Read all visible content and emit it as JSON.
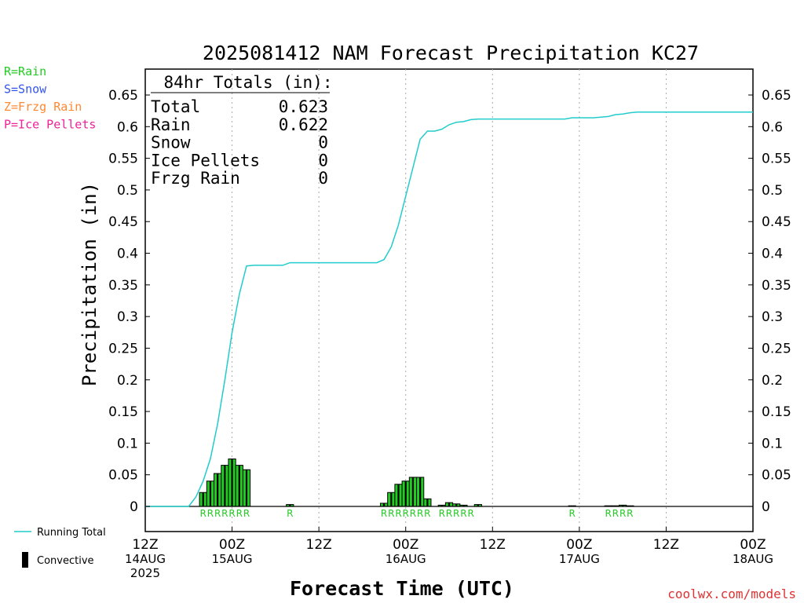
{
  "chart_data": {
    "type": "bar",
    "title": "2025081412 NAM Forecast Precipitation KC27",
    "xlabel": "Forecast Time (UTC)",
    "ylabel": "Precipitation (in)",
    "ylim": [
      0,
      0.68
    ],
    "y_ticks": [
      "0",
      "0.05",
      "0.1",
      "0.15",
      "0.2",
      "0.25",
      "0.3",
      "0.35",
      "0.4",
      "0.45",
      "0.5",
      "0.55",
      "0.6",
      "0.65"
    ],
    "y_tick_values": [
      0,
      0.05,
      0.1,
      0.15,
      0.2,
      0.25,
      0.3,
      0.35,
      0.4,
      0.45,
      0.5,
      0.55,
      0.6,
      0.65
    ],
    "x_range_hours": [
      0,
      84
    ],
    "x_ticks": [
      {
        "hour": 0,
        "lines": [
          "12Z",
          "14AUG",
          "2025"
        ]
      },
      {
        "hour": 12,
        "lines": [
          "00Z",
          "15AUG"
        ]
      },
      {
        "hour": 24,
        "lines": [
          "12Z"
        ]
      },
      {
        "hour": 36,
        "lines": [
          "00Z",
          "16AUG"
        ]
      },
      {
        "hour": 48,
        "lines": [
          "12Z"
        ]
      },
      {
        "hour": 60,
        "lines": [
          "00Z",
          "17AUG"
        ]
      },
      {
        "hour": 72,
        "lines": [
          "12Z"
        ]
      },
      {
        "hour": 84,
        "lines": [
          "00Z",
          "18AUG"
        ]
      }
    ],
    "grid": "vertical-dotted",
    "bar_series": {
      "name": "Convective",
      "hours": [
        8,
        9,
        10,
        11,
        12,
        13,
        14,
        20,
        33,
        34,
        35,
        36,
        37,
        38,
        39,
        41,
        42,
        43,
        44,
        46,
        59,
        64,
        65,
        66,
        67
      ],
      "values": [
        0.022,
        0.04,
        0.052,
        0.065,
        0.075,
        0.065,
        0.058,
        0.003,
        0.005,
        0.022,
        0.035,
        0.04,
        0.046,
        0.046,
        0.012,
        0.002,
        0.006,
        0.004,
        0.002,
        0.003,
        0.001,
        0.001,
        0.001,
        0.002,
        0.001
      ]
    },
    "line_series": {
      "name": "Running Total",
      "hours": [
        0,
        6,
        7,
        8,
        9,
        10,
        11,
        12,
        13,
        14,
        15,
        16,
        17,
        18,
        19,
        20,
        21,
        22,
        24,
        30,
        32,
        33,
        34,
        35,
        36,
        37,
        38,
        39,
        40,
        41,
        42,
        43,
        44,
        45,
        46,
        48,
        50,
        55,
        58,
        59,
        62,
        64,
        65,
        66,
        67,
        68,
        70,
        84
      ],
      "values": [
        0,
        0,
        0.015,
        0.04,
        0.075,
        0.13,
        0.2,
        0.275,
        0.335,
        0.38,
        0.381,
        0.381,
        0.381,
        0.381,
        0.381,
        0.385,
        0.385,
        0.385,
        0.385,
        0.385,
        0.385,
        0.39,
        0.41,
        0.445,
        0.49,
        0.535,
        0.58,
        0.593,
        0.593,
        0.596,
        0.603,
        0.607,
        0.608,
        0.611,
        0.612,
        0.612,
        0.612,
        0.612,
        0.612,
        0.614,
        0.614,
        0.616,
        0.619,
        0.62,
        0.622,
        0.623,
        0.623,
        0.623
      ]
    },
    "type_markers": [
      {
        "hour": 8,
        "label": "R"
      },
      {
        "hour": 9,
        "label": "R"
      },
      {
        "hour": 10,
        "label": "R"
      },
      {
        "hour": 11,
        "label": "R"
      },
      {
        "hour": 12,
        "label": "R"
      },
      {
        "hour": 13,
        "label": "R"
      },
      {
        "hour": 14,
        "label": "R"
      },
      {
        "hour": 20,
        "label": "R"
      },
      {
        "hour": 33,
        "label": "R"
      },
      {
        "hour": 34,
        "label": "R"
      },
      {
        "hour": 35,
        "label": "R"
      },
      {
        "hour": 36,
        "label": "R"
      },
      {
        "hour": 37,
        "label": "R"
      },
      {
        "hour": 38,
        "label": "R"
      },
      {
        "hour": 39,
        "label": "R"
      },
      {
        "hour": 41,
        "label": "R"
      },
      {
        "hour": 42,
        "label": "R"
      },
      {
        "hour": 43,
        "label": "R"
      },
      {
        "hour": 44,
        "label": "R"
      },
      {
        "hour": 45,
        "label": "R"
      },
      {
        "hour": 59,
        "label": "R"
      },
      {
        "hour": 64,
        "label": "R"
      },
      {
        "hour": 65,
        "label": "R"
      },
      {
        "hour": 66,
        "label": "R"
      },
      {
        "hour": 67,
        "label": "R"
      }
    ]
  },
  "precip_type_legend": [
    {
      "text": "R=Rain",
      "color": "#22cc22"
    },
    {
      "text": "S=Snow",
      "color": "#3355ee"
    },
    {
      "text": "Z=Frzg Rain",
      "color": "#ff8833"
    },
    {
      "text": "P=Ice Pellets",
      "color": "#ee2299"
    }
  ],
  "totals_box": {
    "header": "84hr Totals (in):",
    "rows": [
      {
        "label": "Total",
        "value": "0.623"
      },
      {
        "label": "Rain",
        "value": "0.622"
      },
      {
        "label": "Snow",
        "value": "0"
      },
      {
        "label": "Ice Pellets",
        "value": "0"
      },
      {
        "label": "Frzg Rain",
        "value": "0"
      }
    ]
  },
  "series_legend": {
    "running_total": "Running Total",
    "convective": "Convective"
  },
  "credit": "coolwx.com/models",
  "colors": {
    "line": "#22cccc",
    "bar_green": "#22cc22",
    "bar_black": "#000000",
    "rain_marker": "#22cc22",
    "credit": "#dd3333",
    "grid": "#aaaaaa"
  }
}
